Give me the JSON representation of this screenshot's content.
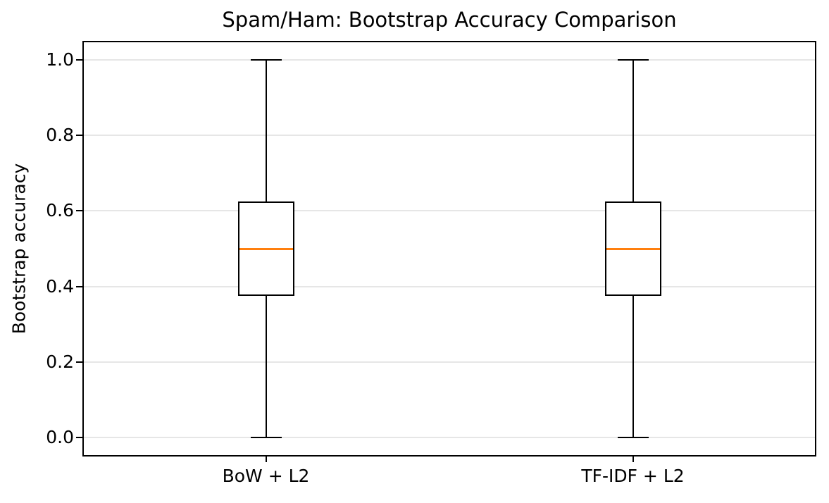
{
  "chart_data": {
    "type": "boxplot",
    "title": "Spam/Ham: Bootstrap Accuracy Comparison",
    "xlabel": "",
    "ylabel": "Bootstrap accuracy",
    "categories": [
      "BoW + L2",
      "TF-IDF + L2"
    ],
    "series": [
      {
        "name": "BoW + L2",
        "whisker_low": 0.0,
        "q1": 0.375,
        "median": 0.5,
        "q3": 0.625,
        "whisker_high": 1.0,
        "fliers": []
      },
      {
        "name": "TF-IDF + L2",
        "whisker_low": 0.0,
        "q1": 0.375,
        "median": 0.5,
        "q3": 0.625,
        "whisker_high": 1.0,
        "fliers": []
      }
    ],
    "positions": [
      1,
      2
    ],
    "xlim": [
      0.5,
      2.5
    ],
    "ylim": [
      -0.05,
      1.05
    ],
    "yticks": [
      {
        "value": 0.0,
        "label": "0.0"
      },
      {
        "value": 0.2,
        "label": "0.2"
      },
      {
        "value": 0.4,
        "label": "0.4"
      },
      {
        "value": 0.6,
        "label": "0.6"
      },
      {
        "value": 0.8,
        "label": "0.8"
      },
      {
        "value": 1.0,
        "label": "1.0"
      }
    ],
    "grid": true,
    "legend": null,
    "colors": {
      "box_line": "#000000",
      "median": "#ff7f0e",
      "grid": "#e6e6e6",
      "background": "#ffffff"
    }
  }
}
